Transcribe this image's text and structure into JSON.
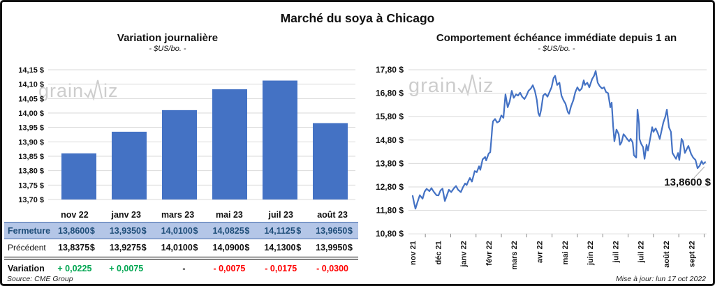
{
  "header": {
    "title": "Marché du soya à Chicago"
  },
  "watermark": {
    "part1": "grain",
    "part2": "iz"
  },
  "footer": {
    "source": "Source: CME Group",
    "updated": "Mise à jour: lun 17 oct 2022"
  },
  "colors": {
    "bar": "#4472C4",
    "line": "#4472C4",
    "grid": "#D9D9D9",
    "tick": "#8a8a8a",
    "fermeture_bg": "#B4C6E7",
    "fermeture_text": "#1F4E79",
    "row_border": "#4a6fae",
    "positive": "#00A651",
    "negative": "#FF0000",
    "leader": "#b0b0b0"
  },
  "table": {
    "columns": [
      "nov 22",
      "janv 23",
      "mars 23",
      "mai 23",
      "juil 23",
      "août 23"
    ],
    "rows": [
      {
        "label": "Fermeture",
        "style": "fermeture",
        "values": [
          "13,8600",
          "13,9350",
          "14,0100",
          "14,0825",
          "14,1125",
          "13,9650"
        ],
        "unit": "$"
      },
      {
        "label": "Précédent",
        "style": "precedent",
        "values": [
          "13,8375",
          "13,9275",
          "14,0100",
          "14,0900",
          "14,1300",
          "13,9950"
        ],
        "unit": "$"
      },
      {
        "label": "Variation",
        "style": "variation",
        "values": [
          "+ 0,0225",
          "+ 0,0075",
          "-",
          "- 0,0075",
          "- 0,0175",
          "- 0,0300"
        ],
        "kinds": [
          "pos",
          "pos",
          "neu",
          "neg",
          "neg",
          "neg"
        ]
      }
    ]
  },
  "chart_data": [
    {
      "type": "bar",
      "title": "Variation  journalière",
      "subtitle": "- $US/bo. -",
      "categories": [
        "nov 22",
        "janv 23",
        "mars 23",
        "mai 23",
        "juil 23",
        "août 23"
      ],
      "values": [
        13.86,
        13.935,
        14.01,
        14.0825,
        14.1125,
        13.965
      ],
      "ylim": [
        13.7,
        14.15
      ],
      "ytick_step": 0.05,
      "ytick_labels": [
        "14,15 $",
        "14,10 $",
        "14,05 $",
        "14,00 $",
        "13,95 $",
        "13,90 $",
        "13,85 $",
        "13,80 $",
        "13,75 $",
        "13,70 $"
      ],
      "grid": true,
      "legend": "none"
    },
    {
      "type": "line",
      "title": "Comportement  échéance immédiate depuis 1 an",
      "subtitle": "- $US/bo. -",
      "x_tick_labels": [
        "nov 21",
        "déc 21",
        "janv 22",
        "févr 22",
        "mars 22",
        "avr 22",
        "mai 22",
        "juin 22",
        "juil 22",
        "juil 22",
        "août 22",
        "sept 22"
      ],
      "ylim": [
        10.8,
        17.8
      ],
      "ytick_step": 1.0,
      "ytick_labels": [
        "17,80 $",
        "16,80 $",
        "15,80 $",
        "14,80 $",
        "13,80 $",
        "12,80 $",
        "11,80 $",
        "10,80 $"
      ],
      "end_label": "13,8600 $",
      "last_value": 13.86,
      "grid": true,
      "legend": "none",
      "points": [
        [
          0.0,
          12.42
        ],
        [
          0.06,
          12.1
        ],
        [
          0.11,
          11.87
        ],
        [
          0.19,
          12.15
        ],
        [
          0.28,
          12.45
        ],
        [
          0.39,
          12.3
        ],
        [
          0.47,
          12.6
        ],
        [
          0.55,
          12.72
        ],
        [
          0.66,
          12.62
        ],
        [
          0.74,
          12.75
        ],
        [
          0.83,
          12.6
        ],
        [
          0.94,
          12.45
        ],
        [
          1.02,
          12.44
        ],
        [
          1.1,
          12.65
        ],
        [
          1.18,
          12.73
        ],
        [
          1.27,
          12.2
        ],
        [
          1.35,
          12.44
        ],
        [
          1.43,
          12.68
        ],
        [
          1.52,
          12.58
        ],
        [
          1.63,
          12.75
        ],
        [
          1.71,
          12.84
        ],
        [
          1.79,
          12.68
        ],
        [
          1.9,
          12.58
        ],
        [
          1.98,
          12.78
        ],
        [
          2.07,
          12.95
        ],
        [
          2.13,
          12.88
        ],
        [
          2.21,
          13.08
        ],
        [
          2.26,
          13.18
        ],
        [
          2.34,
          13.03
        ],
        [
          2.45,
          13.48
        ],
        [
          2.53,
          13.43
        ],
        [
          2.62,
          13.68
        ],
        [
          2.67,
          13.53
        ],
        [
          2.76,
          13.98
        ],
        [
          2.86,
          14.08
        ],
        [
          2.9,
          13.93
        ],
        [
          3.0,
          14.23
        ],
        [
          3.06,
          14.28
        ],
        [
          3.11,
          14.9
        ],
        [
          3.14,
          15.35
        ],
        [
          3.17,
          15.6
        ],
        [
          3.25,
          15.7
        ],
        [
          3.33,
          15.55
        ],
        [
          3.42,
          15.6
        ],
        [
          3.5,
          15.85
        ],
        [
          3.58,
          15.75
        ],
        [
          3.66,
          16.75
        ],
        [
          3.75,
          16.2
        ],
        [
          3.83,
          16.45
        ],
        [
          3.91,
          16.9
        ],
        [
          3.99,
          16.6
        ],
        [
          4.08,
          16.75
        ],
        [
          4.16,
          16.7
        ],
        [
          4.24,
          16.82
        ],
        [
          4.32,
          16.65
        ],
        [
          4.41,
          16.55
        ],
        [
          4.49,
          16.7
        ],
        [
          4.57,
          16.9
        ],
        [
          4.66,
          17.0
        ],
        [
          4.74,
          17.14
        ],
        [
          4.82,
          16.9
        ],
        [
          4.9,
          16.5
        ],
        [
          4.96,
          15.95
        ],
        [
          5.01,
          15.82
        ],
        [
          5.07,
          16.1
        ],
        [
          5.15,
          16.7
        ],
        [
          5.23,
          16.78
        ],
        [
          5.32,
          16.65
        ],
        [
          5.4,
          16.85
        ],
        [
          5.48,
          17.05
        ],
        [
          5.56,
          17.45
        ],
        [
          5.62,
          17.54
        ],
        [
          5.7,
          17.15
        ],
        [
          5.79,
          17.25
        ],
        [
          5.87,
          16.7
        ],
        [
          5.95,
          16.5
        ],
        [
          6.03,
          16.35
        ],
        [
          6.12,
          16.0
        ],
        [
          6.17,
          15.92
        ],
        [
          6.25,
          16.25
        ],
        [
          6.34,
          16.5
        ],
        [
          6.42,
          16.85
        ],
        [
          6.5,
          17.05
        ],
        [
          6.58,
          16.9
        ],
        [
          6.67,
          17.0
        ],
        [
          6.75,
          17.35
        ],
        [
          6.8,
          17.15
        ],
        [
          6.89,
          17.25
        ],
        [
          6.97,
          17.05
        ],
        [
          7.08,
          17.4
        ],
        [
          7.16,
          17.55
        ],
        [
          7.22,
          17.75
        ],
        [
          7.3,
          17.25
        ],
        [
          7.38,
          17.1
        ],
        [
          7.47,
          17.0
        ],
        [
          7.55,
          17.05
        ],
        [
          7.63,
          16.85
        ],
        [
          7.71,
          16.8
        ],
        [
          7.8,
          16.2
        ],
        [
          7.85,
          16.4
        ],
        [
          7.91,
          15.4
        ],
        [
          7.96,
          14.75
        ],
        [
          8.04,
          15.25
        ],
        [
          8.13,
          15.05
        ],
        [
          8.18,
          14.6
        ],
        [
          8.24,
          14.7
        ],
        [
          8.32,
          15.05
        ],
        [
          8.4,
          14.95
        ],
        [
          8.46,
          14.85
        ],
        [
          8.54,
          14.75
        ],
        [
          8.6,
          14.85
        ],
        [
          8.68,
          14.7
        ],
        [
          8.73,
          14.15
        ],
        [
          8.82,
          14.05
        ],
        [
          8.87,
          16.1
        ],
        [
          8.93,
          15.5
        ],
        [
          8.95,
          14.85
        ],
        [
          9.01,
          14.65
        ],
        [
          9.09,
          14.5
        ],
        [
          9.15,
          14.0
        ],
        [
          9.23,
          14.6
        ],
        [
          9.28,
          14.35
        ],
        [
          9.37,
          14.85
        ],
        [
          9.45,
          15.35
        ],
        [
          9.5,
          15.15
        ],
        [
          9.59,
          15.3
        ],
        [
          9.67,
          15.1
        ],
        [
          9.75,
          14.85
        ],
        [
          9.83,
          15.25
        ],
        [
          9.89,
          15.55
        ],
        [
          9.97,
          15.8
        ],
        [
          10.03,
          16.1
        ],
        [
          10.11,
          15.35
        ],
        [
          10.19,
          15.15
        ],
        [
          10.25,
          14.25
        ],
        [
          10.33,
          14.1
        ],
        [
          10.39,
          14.0
        ],
        [
          10.47,
          14.25
        ],
        [
          10.52,
          13.95
        ],
        [
          10.61,
          14.85
        ],
        [
          10.66,
          14.75
        ],
        [
          10.74,
          14.25
        ],
        [
          10.83,
          14.45
        ],
        [
          10.88,
          14.55
        ],
        [
          10.99,
          14.2
        ],
        [
          11.07,
          14.05
        ],
        [
          11.16,
          13.95
        ],
        [
          11.24,
          13.6
        ],
        [
          11.32,
          13.7
        ],
        [
          11.4,
          13.9
        ],
        [
          11.46,
          13.78
        ],
        [
          11.54,
          13.86
        ]
      ]
    }
  ]
}
